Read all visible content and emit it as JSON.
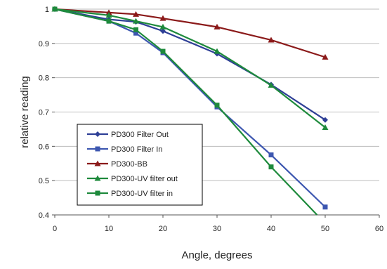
{
  "chart_data": {
    "type": "line",
    "title": "",
    "xlabel": "Angle, degrees",
    "ylabel": "relative reading",
    "xlim": [
      0,
      60
    ],
    "ylim": [
      0.4,
      1.0
    ],
    "xticks": [
      "0",
      "10",
      "20",
      "30",
      "40",
      "50",
      "60"
    ],
    "yticks": [
      "0.4",
      "0.5",
      "0.6",
      "0.7",
      "0.8",
      "0.9",
      "1"
    ],
    "grid": "horizontal",
    "legend_position": "bottom-left",
    "series": [
      {
        "name": "PD300 Filter Out",
        "color": "#2e3f96",
        "marker": "diamond",
        "x": [
          0,
          10,
          15,
          20,
          30,
          40,
          50
        ],
        "y": [
          1.0,
          0.97,
          0.963,
          0.936,
          0.87,
          0.78,
          0.677
        ]
      },
      {
        "name": "PD300 Filter In",
        "color": "#3d57b0",
        "marker": "square",
        "x": [
          0,
          10,
          15,
          20,
          30,
          40,
          50
        ],
        "y": [
          1.0,
          0.965,
          0.93,
          0.873,
          0.715,
          0.575,
          0.423
        ]
      },
      {
        "name": "PD300-BB",
        "color": "#8b1a1a",
        "marker": "triangle",
        "x": [
          0,
          10,
          15,
          20,
          30,
          40,
          50
        ],
        "y": [
          1.0,
          0.99,
          0.985,
          0.973,
          0.948,
          0.91,
          0.86
        ]
      },
      {
        "name": "PD300-UV filter out",
        "color": "#1e8a3c",
        "marker": "triangle",
        "x": [
          0,
          10,
          15,
          20,
          30,
          40,
          50
        ],
        "y": [
          1.0,
          0.982,
          0.965,
          0.948,
          0.877,
          0.778,
          0.655
        ]
      },
      {
        "name": "PD300-UV filter in",
        "color": "#1e8a3c",
        "marker": "square",
        "x": [
          0,
          10,
          15,
          20,
          30,
          40,
          48.5
        ],
        "y": [
          1.0,
          0.965,
          0.94,
          0.877,
          0.72,
          0.54,
          0.4
        ]
      }
    ]
  }
}
